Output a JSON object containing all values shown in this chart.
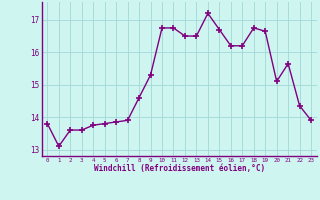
{
  "x": [
    0,
    1,
    2,
    3,
    4,
    5,
    6,
    7,
    8,
    9,
    10,
    11,
    12,
    13,
    14,
    15,
    16,
    17,
    18,
    19,
    20,
    21,
    22,
    23
  ],
  "y": [
    13.8,
    13.1,
    13.6,
    13.6,
    13.75,
    13.8,
    13.85,
    13.9,
    14.6,
    15.3,
    16.75,
    16.75,
    16.5,
    16.5,
    17.2,
    16.7,
    16.2,
    16.2,
    16.75,
    16.65,
    15.1,
    15.65,
    14.35,
    13.9
  ],
  "line_color": "#800080",
  "marker": "+",
  "marker_size": 4,
  "marker_lw": 1.2,
  "bg_color": "#cef5f0",
  "grid_color": "#a0d8d8",
  "xlabel": "Windchill (Refroidissement éolien,°C)",
  "xlabel_color": "#800080",
  "tick_color": "#800080",
  "ylim": [
    12.8,
    17.55
  ],
  "yticks": [
    13,
    14,
    15,
    16,
    17
  ],
  "xticks": [
    0,
    1,
    2,
    3,
    4,
    5,
    6,
    7,
    8,
    9,
    10,
    11,
    12,
    13,
    14,
    15,
    16,
    17,
    18,
    19,
    20,
    21,
    22,
    23
  ],
  "xlim": [
    -0.5,
    23.5
  ],
  "spine_color": "#800080",
  "line_width": 1.0
}
